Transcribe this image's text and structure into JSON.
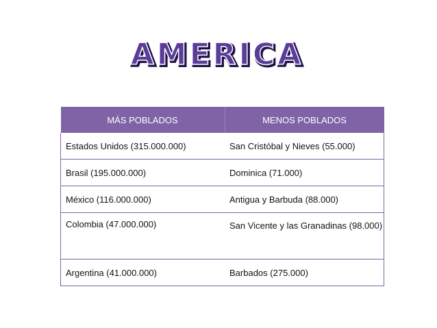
{
  "title": "AMERICA",
  "colors": {
    "accent": "#7f63a6",
    "title_fill": "#5a3c9a",
    "title_outline": "#1e0f45"
  },
  "table": {
    "headers": [
      "MÁS POBLADOS",
      "MENOS POBLADOS"
    ],
    "rows": [
      [
        "Estados Unidos (315.000.000)",
        "San Cristóbal y Nieves (55.000)"
      ],
      [
        "Brasil (195.000.000)",
        "Dominica (71.000)"
      ],
      [
        "México (116.000.000)",
        "Antigua y Barbuda (88.000)"
      ],
      [
        "Colombia (47.000.000)",
        "San Vicente y las Granadinas (98.000)"
      ],
      [
        "Argentina (41.000.000)",
        "Barbados (275.000)"
      ]
    ]
  }
}
